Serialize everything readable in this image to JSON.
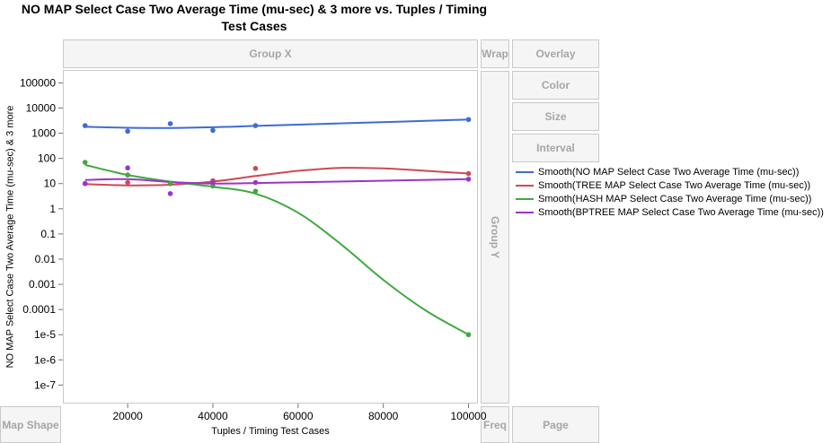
{
  "title_line1": "NO MAP Select Case Two Average Time (mu-sec) & 3 more vs. Tuples / Timing",
  "title_line2": "Test Cases",
  "zones": {
    "group_x": "Group X",
    "wrap": "Wrap",
    "overlay": "Overlay",
    "color": "Color",
    "size": "Size",
    "interval": "Interval",
    "group_y": "Group Y",
    "map_shape": "Map Shape",
    "freq": "Freq",
    "page": "Page"
  },
  "chart_data": {
    "type": "scatter",
    "xlabel": "Tuples / Timing Test Cases",
    "ylabel": "NO MAP Select Case Two Average Time (mu-sec) & 3 more",
    "x_scale": "linear",
    "y_scale": "log",
    "xlim": [
      5000,
      102000
    ],
    "ylim": [
      2e-08,
      300000
    ],
    "x_ticks": [
      20000,
      40000,
      60000,
      80000,
      100000
    ],
    "x_tick_labels": [
      "20000",
      "40000",
      "60000",
      "80000",
      "100000"
    ],
    "y_ticks": [
      100000,
      10000,
      1000,
      100,
      10,
      1,
      0.1,
      0.01,
      0.001,
      0.0001,
      1e-05,
      1e-06,
      1e-07
    ],
    "y_tick_labels": [
      "100000",
      "10000",
      "1000",
      "100",
      "10",
      "1",
      "0.1",
      "0.01",
      "0.001",
      "0.0001",
      "1e-5",
      "1e-6",
      "1e-7"
    ],
    "grid": false,
    "legend_position": "right",
    "series": [
      {
        "name": "Smooth(NO MAP Select Case Two Average Time (mu-sec))",
        "color": "#3F6BD6",
        "points": [
          [
            10000,
            2000
          ],
          [
            20000,
            1200
          ],
          [
            30000,
            2400
          ],
          [
            40000,
            1300
          ],
          [
            50000,
            2000
          ],
          [
            100000,
            3500
          ]
        ],
        "smooth": [
          [
            10000,
            1800
          ],
          [
            20000,
            1650
          ],
          [
            30000,
            1620
          ],
          [
            40000,
            1720
          ],
          [
            50000,
            1950
          ],
          [
            75000,
            2600
          ],
          [
            100000,
            3500
          ]
        ]
      },
      {
        "name": "Smooth(TREE MAP Select Case Two Average Time (mu-sec))",
        "color": "#CC4A55",
        "points": [
          [
            10000,
            10
          ],
          [
            20000,
            11
          ],
          [
            30000,
            10
          ],
          [
            40000,
            13
          ],
          [
            50000,
            40
          ],
          [
            100000,
            25
          ]
        ],
        "smooth": [
          [
            10000,
            9.5
          ],
          [
            20000,
            8.5
          ],
          [
            30000,
            9
          ],
          [
            40000,
            12
          ],
          [
            50000,
            20
          ],
          [
            60000,
            32
          ],
          [
            70000,
            42
          ],
          [
            80000,
            40
          ],
          [
            90000,
            32
          ],
          [
            100000,
            25
          ]
        ]
      },
      {
        "name": "Smooth(HASH MAP Select Case Two Average Time (mu-sec))",
        "color": "#3EAA3E",
        "points": [
          [
            10000,
            70
          ],
          [
            20000,
            22
          ],
          [
            30000,
            10
          ],
          [
            40000,
            8
          ],
          [
            50000,
            5
          ],
          [
            100000,
            1e-05
          ]
        ],
        "smooth": [
          [
            10000,
            55
          ],
          [
            20000,
            22
          ],
          [
            30000,
            12
          ],
          [
            40000,
            7.5
          ],
          [
            50000,
            4
          ],
          [
            60000,
            0.7
          ],
          [
            70000,
            0.04
          ],
          [
            80000,
            0.0015
          ],
          [
            90000,
            9e-05
          ],
          [
            100000,
            1e-05
          ]
        ]
      },
      {
        "name": "Smooth(BPTREE MAP Select Case Two Average Time (mu-sec))",
        "color": "#9B35C8",
        "points": [
          [
            10000,
            10
          ],
          [
            20000,
            42
          ],
          [
            30000,
            4
          ],
          [
            40000,
            11
          ],
          [
            50000,
            11
          ],
          [
            100000,
            15
          ]
        ],
        "smooth": [
          [
            10000,
            14
          ],
          [
            20000,
            15
          ],
          [
            30000,
            11.5
          ],
          [
            40000,
            10
          ],
          [
            50000,
            10.5
          ],
          [
            75000,
            12.5
          ],
          [
            100000,
            15
          ]
        ]
      }
    ]
  }
}
